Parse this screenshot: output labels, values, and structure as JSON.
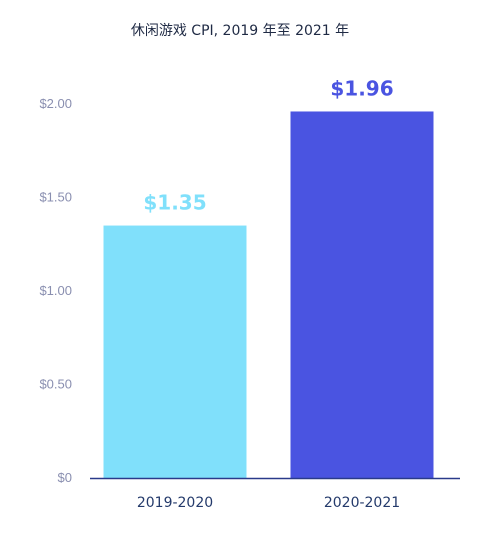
{
  "chart_data": {
    "type": "bar",
    "title": "休闲游戏 CPI, 2019 年至 2021 年",
    "categories": [
      "2019-2020",
      "2020-2021"
    ],
    "values": [
      1.35,
      1.96
    ],
    "data_labels": [
      "$1.35",
      "$1.96"
    ],
    "bar_colors": [
      "#80e0fb",
      "#4a54e1"
    ],
    "label_colors": [
      "#80e0fb",
      "#4a54e1"
    ],
    "yticks": [
      0,
      0.5,
      1.0,
      1.5,
      2.0
    ],
    "ytick_labels": [
      "$0",
      "$0.50",
      "$1.00",
      "$1.50",
      "$2.00"
    ],
    "ylim": [
      0,
      2.0
    ],
    "xlabel": "",
    "ylabel": "",
    "grid": false,
    "baseline_color": "#2a3a8a"
  }
}
